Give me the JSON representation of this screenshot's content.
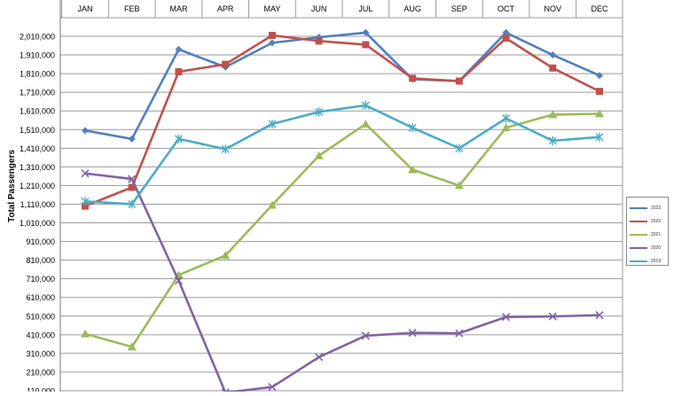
{
  "chart_data": {
    "type": "line",
    "title": "",
    "xlabel": "",
    "ylabel": "Total Passengers",
    "categories": [
      "JAN",
      "FEB",
      "MAR",
      "APR",
      "MAY",
      "JUN",
      "JUL",
      "AUG",
      "SEP",
      "OCT",
      "NOV",
      "DEC"
    ],
    "y_tick_labels": [
      "110,000",
      "210,000",
      "310,000",
      "410,000",
      "510,000",
      "610,000",
      "710,000",
      "810,000",
      "910,000",
      "1,010,000",
      "1,110,000",
      "1,210,000",
      "1,310,000",
      "1,410,000",
      "1,510,000",
      "1,610,000",
      "1,710,000",
      "1,810,000",
      "1,910,000",
      "2,010,000"
    ],
    "y_ticks": [
      110000,
      210000,
      310000,
      410000,
      510000,
      610000,
      710000,
      810000,
      910000,
      1010000,
      1110000,
      1210000,
      1310000,
      1410000,
      1510000,
      1610000,
      1710000,
      1810000,
      1910000,
      2010000
    ],
    "ylim": [
      110000,
      2110000
    ],
    "grid": true,
    "legend_position": "right",
    "series": [
      {
        "name": "2023",
        "color": "#4f81bd",
        "marker": "diamond",
        "values": [
          1505000,
          1460000,
          1940000,
          1845000,
          1975000,
          2005000,
          2030000,
          1780000,
          1770000,
          2030000,
          1910000,
          1800000
        ]
      },
      {
        "name": "2022",
        "color": "#c0504d",
        "marker": "square",
        "values": [
          1100000,
          1200000,
          1820000,
          1860000,
          2015000,
          1985000,
          1965000,
          1785000,
          1770000,
          2000000,
          1840000,
          1715000
        ]
      },
      {
        "name": "2021",
        "color": "#9bbb59",
        "marker": "triangle",
        "values": [
          415000,
          345000,
          730000,
          835000,
          1105000,
          1370000,
          1540000,
          1295000,
          1210000,
          1520000,
          1590000,
          1595000
        ]
      },
      {
        "name": "2020",
        "color": "#8064a2",
        "marker": "x",
        "values": [
          1275000,
          1245000,
          700000,
          100000,
          130000,
          290000,
          405000,
          420000,
          418000,
          505000,
          508000,
          515000
        ]
      },
      {
        "name": "2019",
        "color": "#4bacc6",
        "marker": "star",
        "values": [
          1125000,
          1110000,
          1460000,
          1405000,
          1540000,
          1605000,
          1640000,
          1520000,
          1410000,
          1570000,
          1450000,
          1470000
        ]
      }
    ]
  }
}
